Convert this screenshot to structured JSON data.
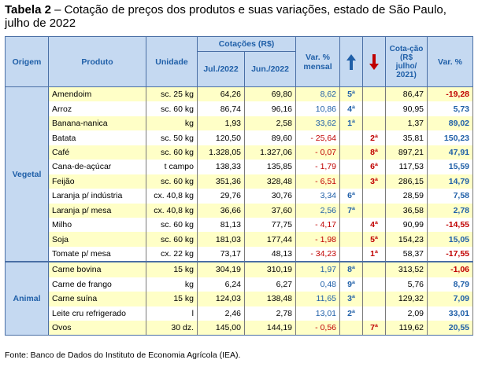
{
  "title": {
    "bold": "Tabela 2",
    "rest": " – Cotação de preços dos produtos e suas variações, estado de São Paulo, julho de 2022"
  },
  "header": {
    "origem": "Origem",
    "produto": "Produto",
    "unidade": "Unidade",
    "cotacoes": "Cotações (R$)",
    "jul": "Jul./2022",
    "jun": "Jun./2022",
    "var_mensal": "Var. % mensal",
    "cot_jul21": "Cota-ção (R$ julho/ 2021)",
    "var_anual": "Var. %",
    "up_icon": "arrow-up-icon",
    "down_icon": "arrow-down-icon",
    "colors": {
      "blue": "#1f5fa8",
      "red": "#c00000",
      "header_bg": "#c5d9f1",
      "stripe": "#ffffc7"
    }
  },
  "groups": [
    {
      "origin": "Vegetal",
      "rows": [
        {
          "produto": "Amendoim",
          "unidade": "sc. 25 kg",
          "jul": "64,26",
          "jun": "69,80",
          "var": "8,62",
          "up": "5ª",
          "down": "",
          "cot21": "86,47",
          "var12": "-19,28"
        },
        {
          "produto": "Arroz",
          "unidade": "sc. 60 kg",
          "jul": "86,74",
          "jun": "96,16",
          "var": "10,86",
          "up": "4ª",
          "down": "",
          "cot21": "90,95",
          "var12": "5,73"
        },
        {
          "produto": "Banana-nanica",
          "unidade": "kg",
          "jul": "1,93",
          "jun": "2,58",
          "var": "33,62",
          "up": "1ª",
          "down": "",
          "cot21": "1,37",
          "var12": "89,02"
        },
        {
          "produto": "Batata",
          "unidade": "sc. 50 kg",
          "jul": "120,50",
          "jun": "89,60",
          "var": "- 25,64",
          "up": "",
          "down": "2ª",
          "cot21": "35,81",
          "var12": "150,23"
        },
        {
          "produto": "Café",
          "unidade": "sc. 60 kg",
          "jul": "1.328,05",
          "jun": "1.327,06",
          "var": "- 0,07",
          "up": "",
          "down": "8ª",
          "cot21": "897,21",
          "var12": "47,91"
        },
        {
          "produto": "Cana-de-açúcar",
          "unidade": "t campo",
          "jul": "138,33",
          "jun": "135,85",
          "var": "- 1,79",
          "up": "",
          "down": "6ª",
          "cot21": "117,53",
          "var12": "15,59"
        },
        {
          "produto": "Feijão",
          "unidade": "sc. 60 kg",
          "jul": "351,36",
          "jun": "328,48",
          "var": "- 6,51",
          "up": "",
          "down": "3ª",
          "cot21": "286,15",
          "var12": "14,79"
        },
        {
          "produto": "Laranja p/ indústria",
          "unidade": "cx. 40,8 kg",
          "jul": "29,76",
          "jun": "30,76",
          "var": "3,34",
          "up": "6ª",
          "down": "",
          "cot21": "28,59",
          "var12": "7,58"
        },
        {
          "produto": "Laranja p/ mesa",
          "unidade": "cx. 40,8 kg",
          "jul": "36,66",
          "jun": "37,60",
          "var": "2,56",
          "up": "7ª",
          "down": "",
          "cot21": "36,58",
          "var12": "2,78"
        },
        {
          "produto": "Milho",
          "unidade": "sc. 60 kg",
          "jul": "81,13",
          "jun": "77,75",
          "var": "- 4,17",
          "up": "",
          "down": "4ª",
          "cot21": "90,99",
          "var12": "-14,55"
        },
        {
          "produto": "Soja",
          "unidade": "sc. 60 kg",
          "jul": "181,03",
          "jun": "177,44",
          "var": "- 1,98",
          "up": "",
          "down": "5ª",
          "cot21": "154,23",
          "var12": "15,05"
        },
        {
          "produto": "Tomate p/ mesa",
          "unidade": "cx. 22 kg",
          "jul": "73,17",
          "jun": "48,13",
          "var": "- 34,23",
          "up": "",
          "down": "1ª",
          "cot21": "58,37",
          "var12": "-17,55"
        }
      ]
    },
    {
      "origin": "Animal",
      "rows": [
        {
          "produto": "Carne bovina",
          "unidade": "15 kg",
          "jul": "304,19",
          "jun": "310,19",
          "var": "1,97",
          "up": "8ª",
          "down": "",
          "cot21": "313,52",
          "var12": "-1,06"
        },
        {
          "produto": "Carne de frango",
          "unidade": "kg",
          "jul": "6,24",
          "jun": "6,27",
          "var": "0,48",
          "up": "9ª",
          "down": "",
          "cot21": "5,76",
          "var12": "8,79"
        },
        {
          "produto": "Carne suína",
          "unidade": "15 kg",
          "jul": "124,03",
          "jun": "138,48",
          "var": "11,65",
          "up": "3ª",
          "down": "",
          "cot21": "129,32",
          "var12": "7,09"
        },
        {
          "produto": "Leite cru refrigerado",
          "unidade": "l",
          "jul": "2,46",
          "jun": "2,78",
          "var": "13,01",
          "up": "2ª",
          "down": "",
          "cot21": "2,09",
          "var12": "33,01"
        },
        {
          "produto": "Ovos",
          "unidade": "30 dz.",
          "jul": "145,00",
          "jun": "144,19",
          "var": "- 0,56",
          "up": "",
          "down": "7ª",
          "cot21": "119,62",
          "var12": "20,55"
        }
      ]
    }
  ],
  "source": "Fonte: Banco de Dados do Instituto de Economia Agrícola (IEA)."
}
